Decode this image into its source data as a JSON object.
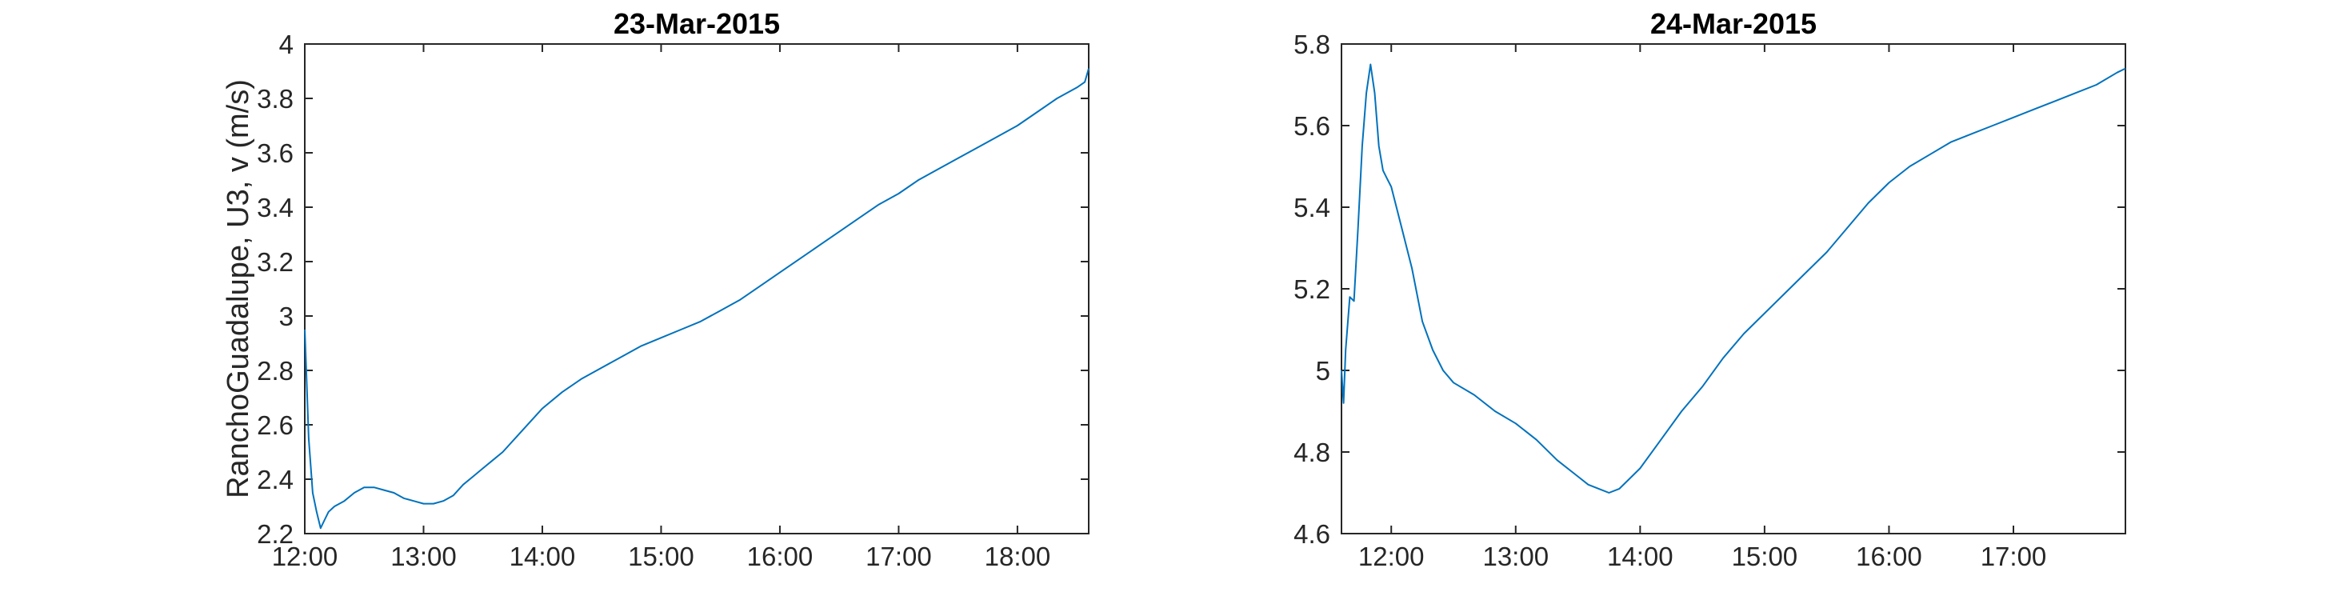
{
  "chart_data": [
    {
      "type": "line",
      "title": "23-Mar-2015",
      "xlabel": "",
      "ylabel": "RanchoGuadalupe, U3, v (m/s)",
      "xlim": [
        "12:00",
        "18:36"
      ],
      "ylim": [
        2.2,
        4.0
      ],
      "x_ticks": [
        "12:00",
        "13:00",
        "14:00",
        "15:00",
        "16:00",
        "17:00",
        "18:00"
      ],
      "y_ticks": [
        "2.2",
        "2.4",
        "2.6",
        "2.8",
        "3",
        "3.2",
        "3.4",
        "3.6",
        "3.8",
        "4"
      ],
      "grid": false,
      "series": [
        {
          "color": "#0072BD",
          "x": [
            "12:00",
            "12:01",
            "12:02",
            "12:04",
            "12:06",
            "12:08",
            "12:10",
            "12:12",
            "12:15",
            "12:20",
            "12:25",
            "12:30",
            "12:35",
            "12:40",
            "12:45",
            "12:50",
            "12:55",
            "13:00",
            "13:05",
            "13:10",
            "13:15",
            "13:20",
            "13:25",
            "13:30",
            "13:35",
            "13:40",
            "13:45",
            "13:50",
            "13:55",
            "14:00",
            "14:10",
            "14:20",
            "14:30",
            "14:40",
            "14:50",
            "15:00",
            "15:10",
            "15:20",
            "15:30",
            "15:40",
            "15:50",
            "16:00",
            "16:10",
            "16:20",
            "16:30",
            "16:40",
            "16:50",
            "17:00",
            "17:10",
            "17:20",
            "17:30",
            "17:40",
            "17:50",
            "18:00",
            "18:10",
            "18:20",
            "18:30",
            "18:34",
            "18:36"
          ],
          "y": [
            2.95,
            2.75,
            2.55,
            2.35,
            2.28,
            2.22,
            2.25,
            2.28,
            2.3,
            2.32,
            2.35,
            2.37,
            2.37,
            2.36,
            2.35,
            2.33,
            2.32,
            2.31,
            2.31,
            2.32,
            2.34,
            2.38,
            2.41,
            2.44,
            2.47,
            2.5,
            2.54,
            2.58,
            2.62,
            2.66,
            2.72,
            2.77,
            2.81,
            2.85,
            2.89,
            2.92,
            2.95,
            2.98,
            3.02,
            3.06,
            3.11,
            3.16,
            3.21,
            3.26,
            3.31,
            3.36,
            3.41,
            3.45,
            3.5,
            3.54,
            3.58,
            3.62,
            3.66,
            3.7,
            3.75,
            3.8,
            3.84,
            3.86,
            3.91
          ]
        }
      ]
    },
    {
      "type": "line",
      "title": "24-Mar-2015",
      "xlabel": "",
      "ylabel": "",
      "xlim": [
        "11:36",
        "17:54"
      ],
      "ylim": [
        4.6,
        5.8
      ],
      "x_ticks": [
        "12:00",
        "13:00",
        "14:00",
        "15:00",
        "16:00",
        "17:00"
      ],
      "y_ticks": [
        "4.6",
        "4.8",
        "5",
        "5.2",
        "5.4",
        "5.6",
        "5.8"
      ],
      "grid": false,
      "series": [
        {
          "color": "#0072BD",
          "x": [
            "11:36",
            "11:37",
            "11:38",
            "11:40",
            "11:42",
            "11:44",
            "11:46",
            "11:48",
            "11:50",
            "11:52",
            "11:54",
            "11:56",
            "11:58",
            "12:00",
            "12:05",
            "12:10",
            "12:15",
            "12:20",
            "12:25",
            "12:30",
            "12:40",
            "12:50",
            "13:00",
            "13:10",
            "13:20",
            "13:30",
            "13:35",
            "13:40",
            "13:45",
            "13:50",
            "14:00",
            "14:10",
            "14:20",
            "14:30",
            "14:40",
            "14:50",
            "15:00",
            "15:10",
            "15:20",
            "15:30",
            "15:40",
            "15:50",
            "16:00",
            "16:10",
            "16:20",
            "16:30",
            "16:40",
            "16:50",
            "17:00",
            "17:10",
            "17:20",
            "17:30",
            "17:40",
            "17:50",
            "17:54"
          ],
          "y": [
            5.0,
            4.92,
            5.05,
            5.18,
            5.17,
            5.35,
            5.55,
            5.68,
            5.75,
            5.68,
            5.55,
            5.49,
            5.47,
            5.45,
            5.35,
            5.25,
            5.12,
            5.05,
            5.0,
            4.97,
            4.94,
            4.9,
            4.87,
            4.83,
            4.78,
            4.74,
            4.72,
            4.71,
            4.7,
            4.71,
            4.76,
            4.83,
            4.9,
            4.96,
            5.03,
            5.09,
            5.14,
            5.19,
            5.24,
            5.29,
            5.35,
            5.41,
            5.46,
            5.5,
            5.53,
            5.56,
            5.58,
            5.6,
            5.62,
            5.64,
            5.66,
            5.68,
            5.7,
            5.73,
            5.74
          ]
        }
      ]
    }
  ]
}
